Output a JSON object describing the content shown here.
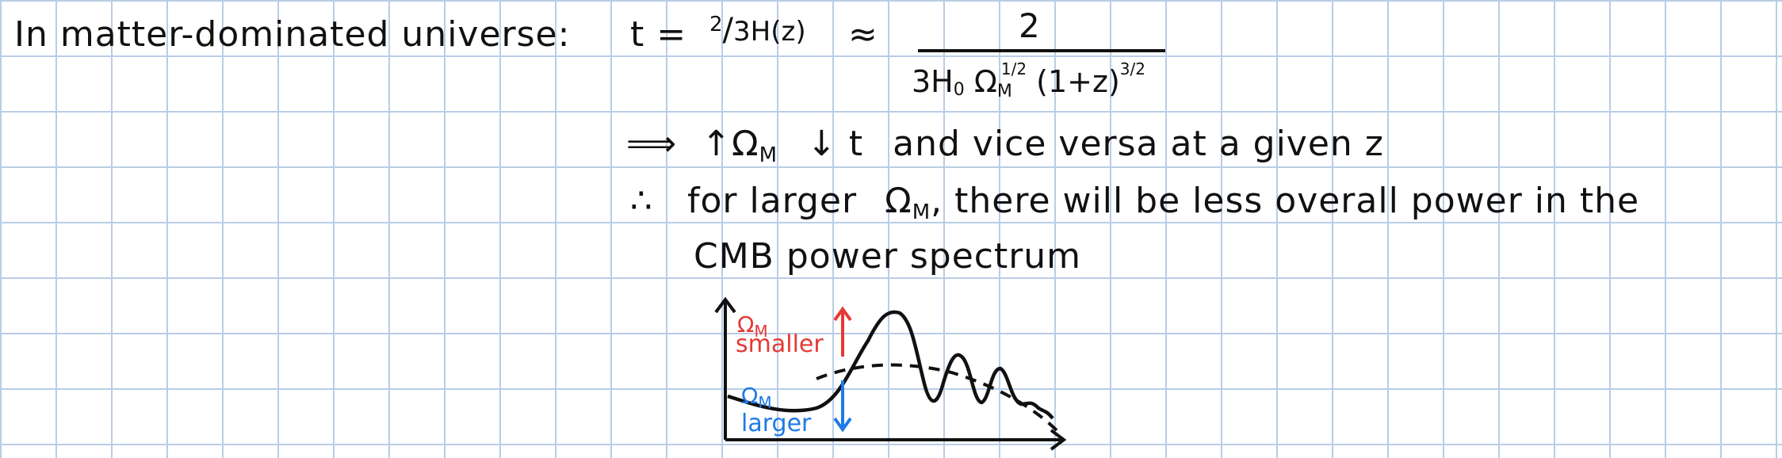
{
  "line1": {
    "lead": "In matter-dominated universe:",
    "t_eq": "t =",
    "frac_num_small": "2",
    "frac_den_small": "3H(z)",
    "approx": "≈",
    "frac_num": "2",
    "den_prefix": "3H",
    "den_h_sub": "0",
    "den_omega": "Ω",
    "den_omega_sub": "M",
    "den_omega_sup": "1/2",
    "den_paren": "(1+z)",
    "den_paren_sup": "3/2"
  },
  "line2": {
    "arrow": "⟹",
    "up": "↑",
    "omega": "Ω",
    "omega_sub": "M",
    "down": "↓",
    "t": "t",
    "rest": "and vice versa  at a given z"
  },
  "line3": {
    "therefore": "∴",
    "text_a": "for larger",
    "omega": "Ω",
    "omega_sub": "M",
    "text_b": ", there will be less overall power in the"
  },
  "line4": {
    "text": "CMB power spectrum"
  },
  "sketch": {
    "red_label_omega": "Ω",
    "red_label_sub": "M",
    "red_label_word": "smaller",
    "blue_label_omega": "Ω",
    "blue_label_sub": "M",
    "blue_label_word": "larger",
    "red_color": "#e53935",
    "blue_color": "#1e7ae6"
  }
}
